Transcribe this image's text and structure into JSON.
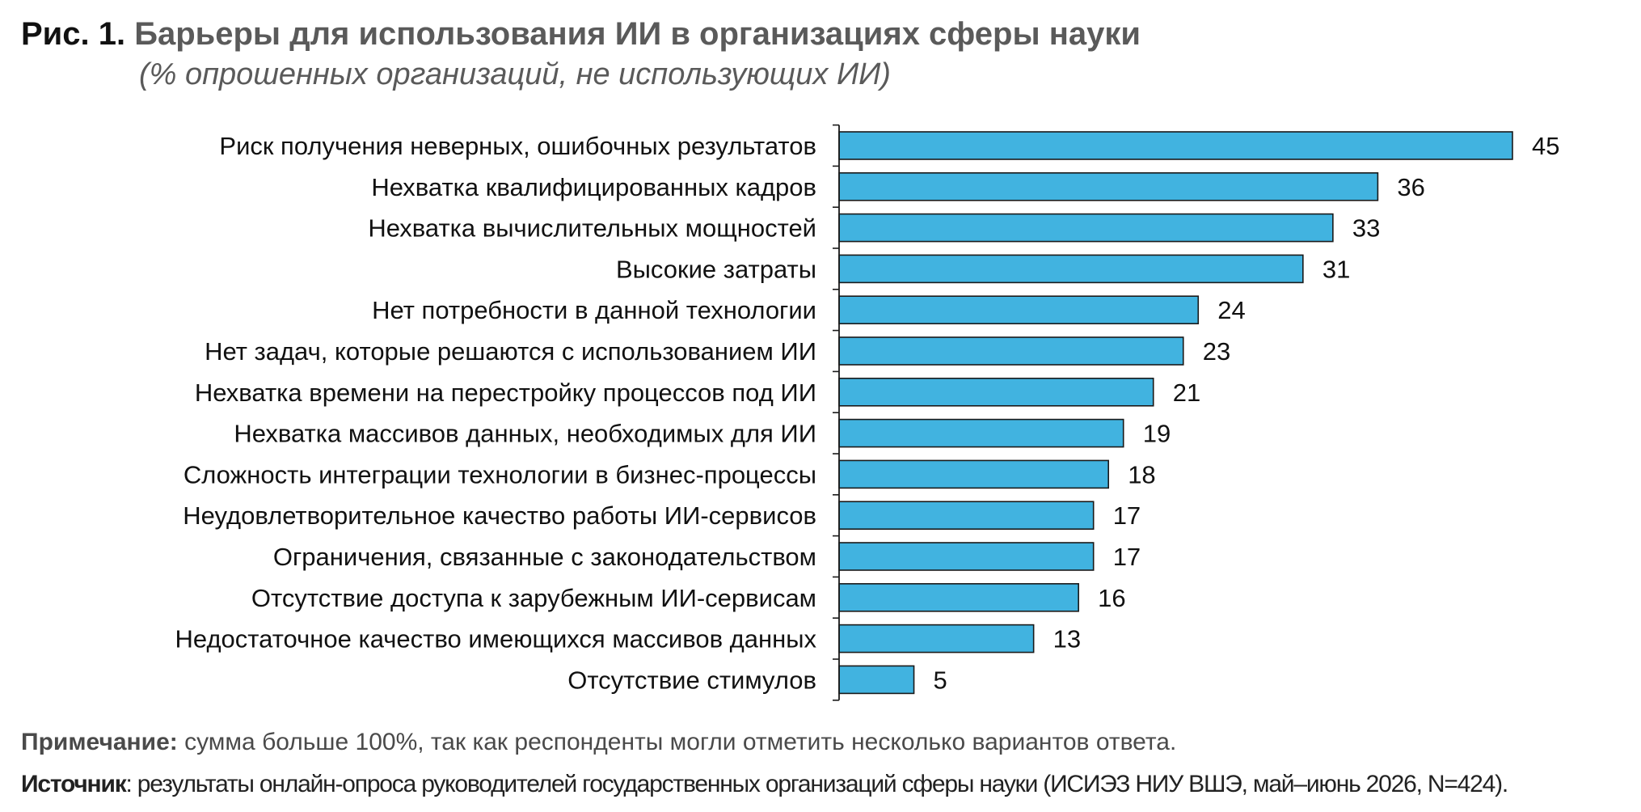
{
  "figure": {
    "number": "Рис. 1.",
    "title": "Барьеры для использования ИИ в организациях сферы науки",
    "subtitle": "(% опрошенных организаций, не использующих ИИ)"
  },
  "note": {
    "label": "Примечание:",
    "text": " сумма больше 100%, так как респонденты могли отметить несколько вариантов ответа."
  },
  "source": {
    "label": "Источник",
    "text": ": результаты онлайн-опроса руководителей государственных организаций сферы науки (ИСИЭЗ НИУ ВШЭ, май–июнь 2026, N=424)."
  },
  "colors": {
    "bar_fill": "#41b3e0",
    "bar_stroke": "#1a1a1a",
    "title_gray": "#5a5a5a"
  },
  "chart_data": {
    "type": "bar",
    "orientation": "horizontal",
    "categories": [
      "Риск получения неверных, ошибочных результатов",
      "Нехватка квалифицированных кадров",
      "Нехватка вычислительных мощностей",
      "Высокие затраты",
      "Нет потребности в данной технологии",
      "Нет задач, которые решаются с использованием ИИ",
      "Нехватка времени на перестройку процессов под ИИ",
      "Нехватка массивов данных, необходимых для ИИ",
      "Сложность интеграции технологии в бизнес-процессы",
      "Неудовлетворительное качество работы ИИ-сервисов",
      "Ограничения, связанные с законодательством",
      "Отсутствие доступа к зарубежным ИИ-сервисам",
      "Недостаточное качество имеющихся массивов данных",
      "Отсутствие стимулов"
    ],
    "values": [
      45,
      36,
      33,
      31,
      24,
      23,
      21,
      19,
      18,
      17,
      17,
      16,
      13,
      5
    ],
    "xlim": [
      0,
      45
    ],
    "data_labels": true,
    "grid": false,
    "legend": "none"
  }
}
